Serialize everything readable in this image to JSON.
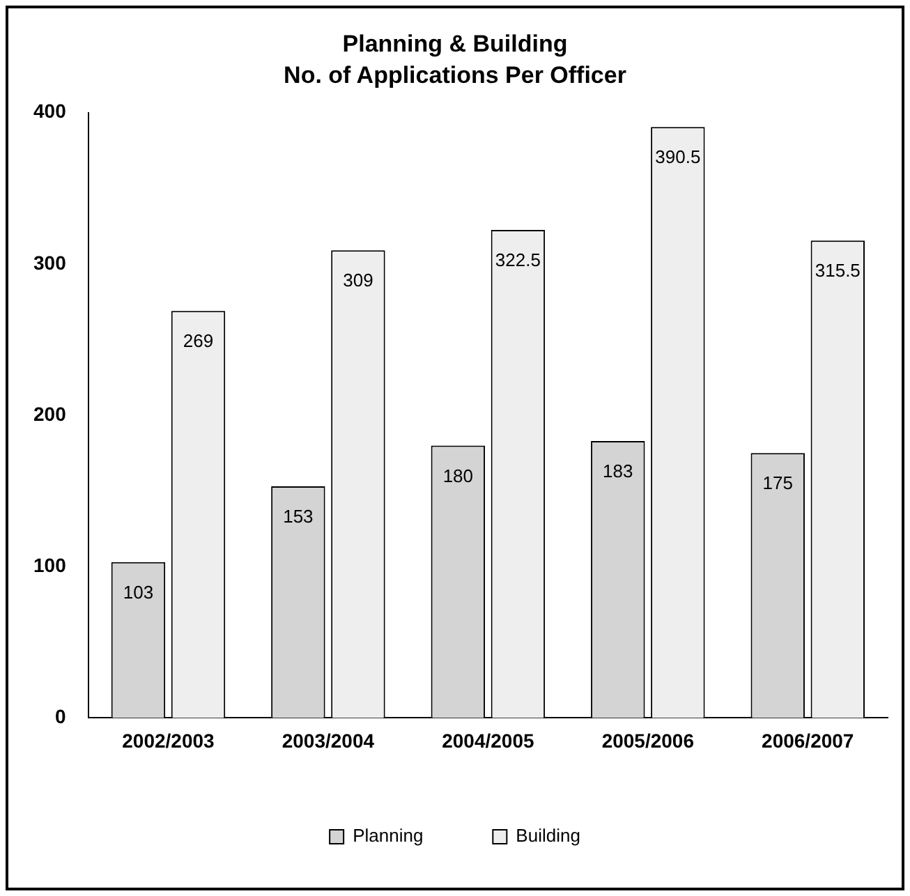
{
  "chart_data": {
    "type": "bar",
    "title": "Planning & Building",
    "subtitle": "No. of Applications Per Officer",
    "categories": [
      "2002/2003",
      "2003/2004",
      "2004/2005",
      "2005/2006",
      "2006/2007"
    ],
    "series": [
      {
        "name": "Planning",
        "color": "#d4d4d4",
        "values": [
          103,
          153,
          180,
          183,
          175
        ]
      },
      {
        "name": "Building",
        "color": "#eeeeee",
        "values": [
          269,
          309,
          322.5,
          390.5,
          315.5
        ]
      }
    ],
    "ylim": [
      0,
      400
    ],
    "yticks": [
      0,
      100,
      200,
      300,
      400
    ],
    "grid": false,
    "legend": "bottom",
    "data_labels": true
  }
}
